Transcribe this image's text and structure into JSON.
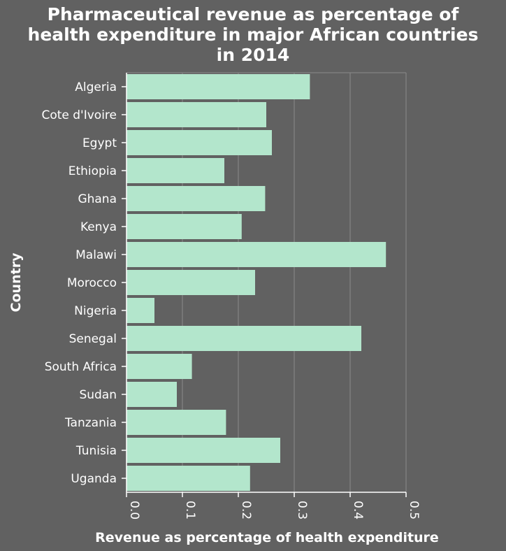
{
  "chart_data": {
    "type": "bar",
    "orientation": "horizontal",
    "title_lines": [
      "Pharmaceutical revenue as percentage of",
      "health expenditure in major African countries",
      "in 2014"
    ],
    "xlabel": "Revenue as percentage of health expenditure",
    "ylabel": "Country",
    "xlim": [
      0,
      0.5
    ],
    "xticks": [
      "0.0",
      "0.1",
      "0.2",
      "0.3",
      "0.4",
      "0.5"
    ],
    "grid": "vertical",
    "categories": [
      "Algeria",
      "Cote d'Ivoire",
      "Egypt",
      "Ethiopia",
      "Ghana",
      "Kenya",
      "Malawi",
      "Morocco",
      "Nigeria",
      "Senegal",
      "South Africa",
      "Sudan",
      "Tanzania",
      "Tunisia",
      "Uganda"
    ],
    "values": [
      0.328,
      0.25,
      0.26,
      0.175,
      0.248,
      0.206,
      0.464,
      0.23,
      0.05,
      0.42,
      0.117,
      0.09,
      0.178,
      0.275,
      0.221
    ],
    "colors": {
      "background": "#616161",
      "bar": "#b3e6cc",
      "grid": "#8a8a8a",
      "axis": "#ffffff",
      "text": "#ffffff"
    }
  }
}
